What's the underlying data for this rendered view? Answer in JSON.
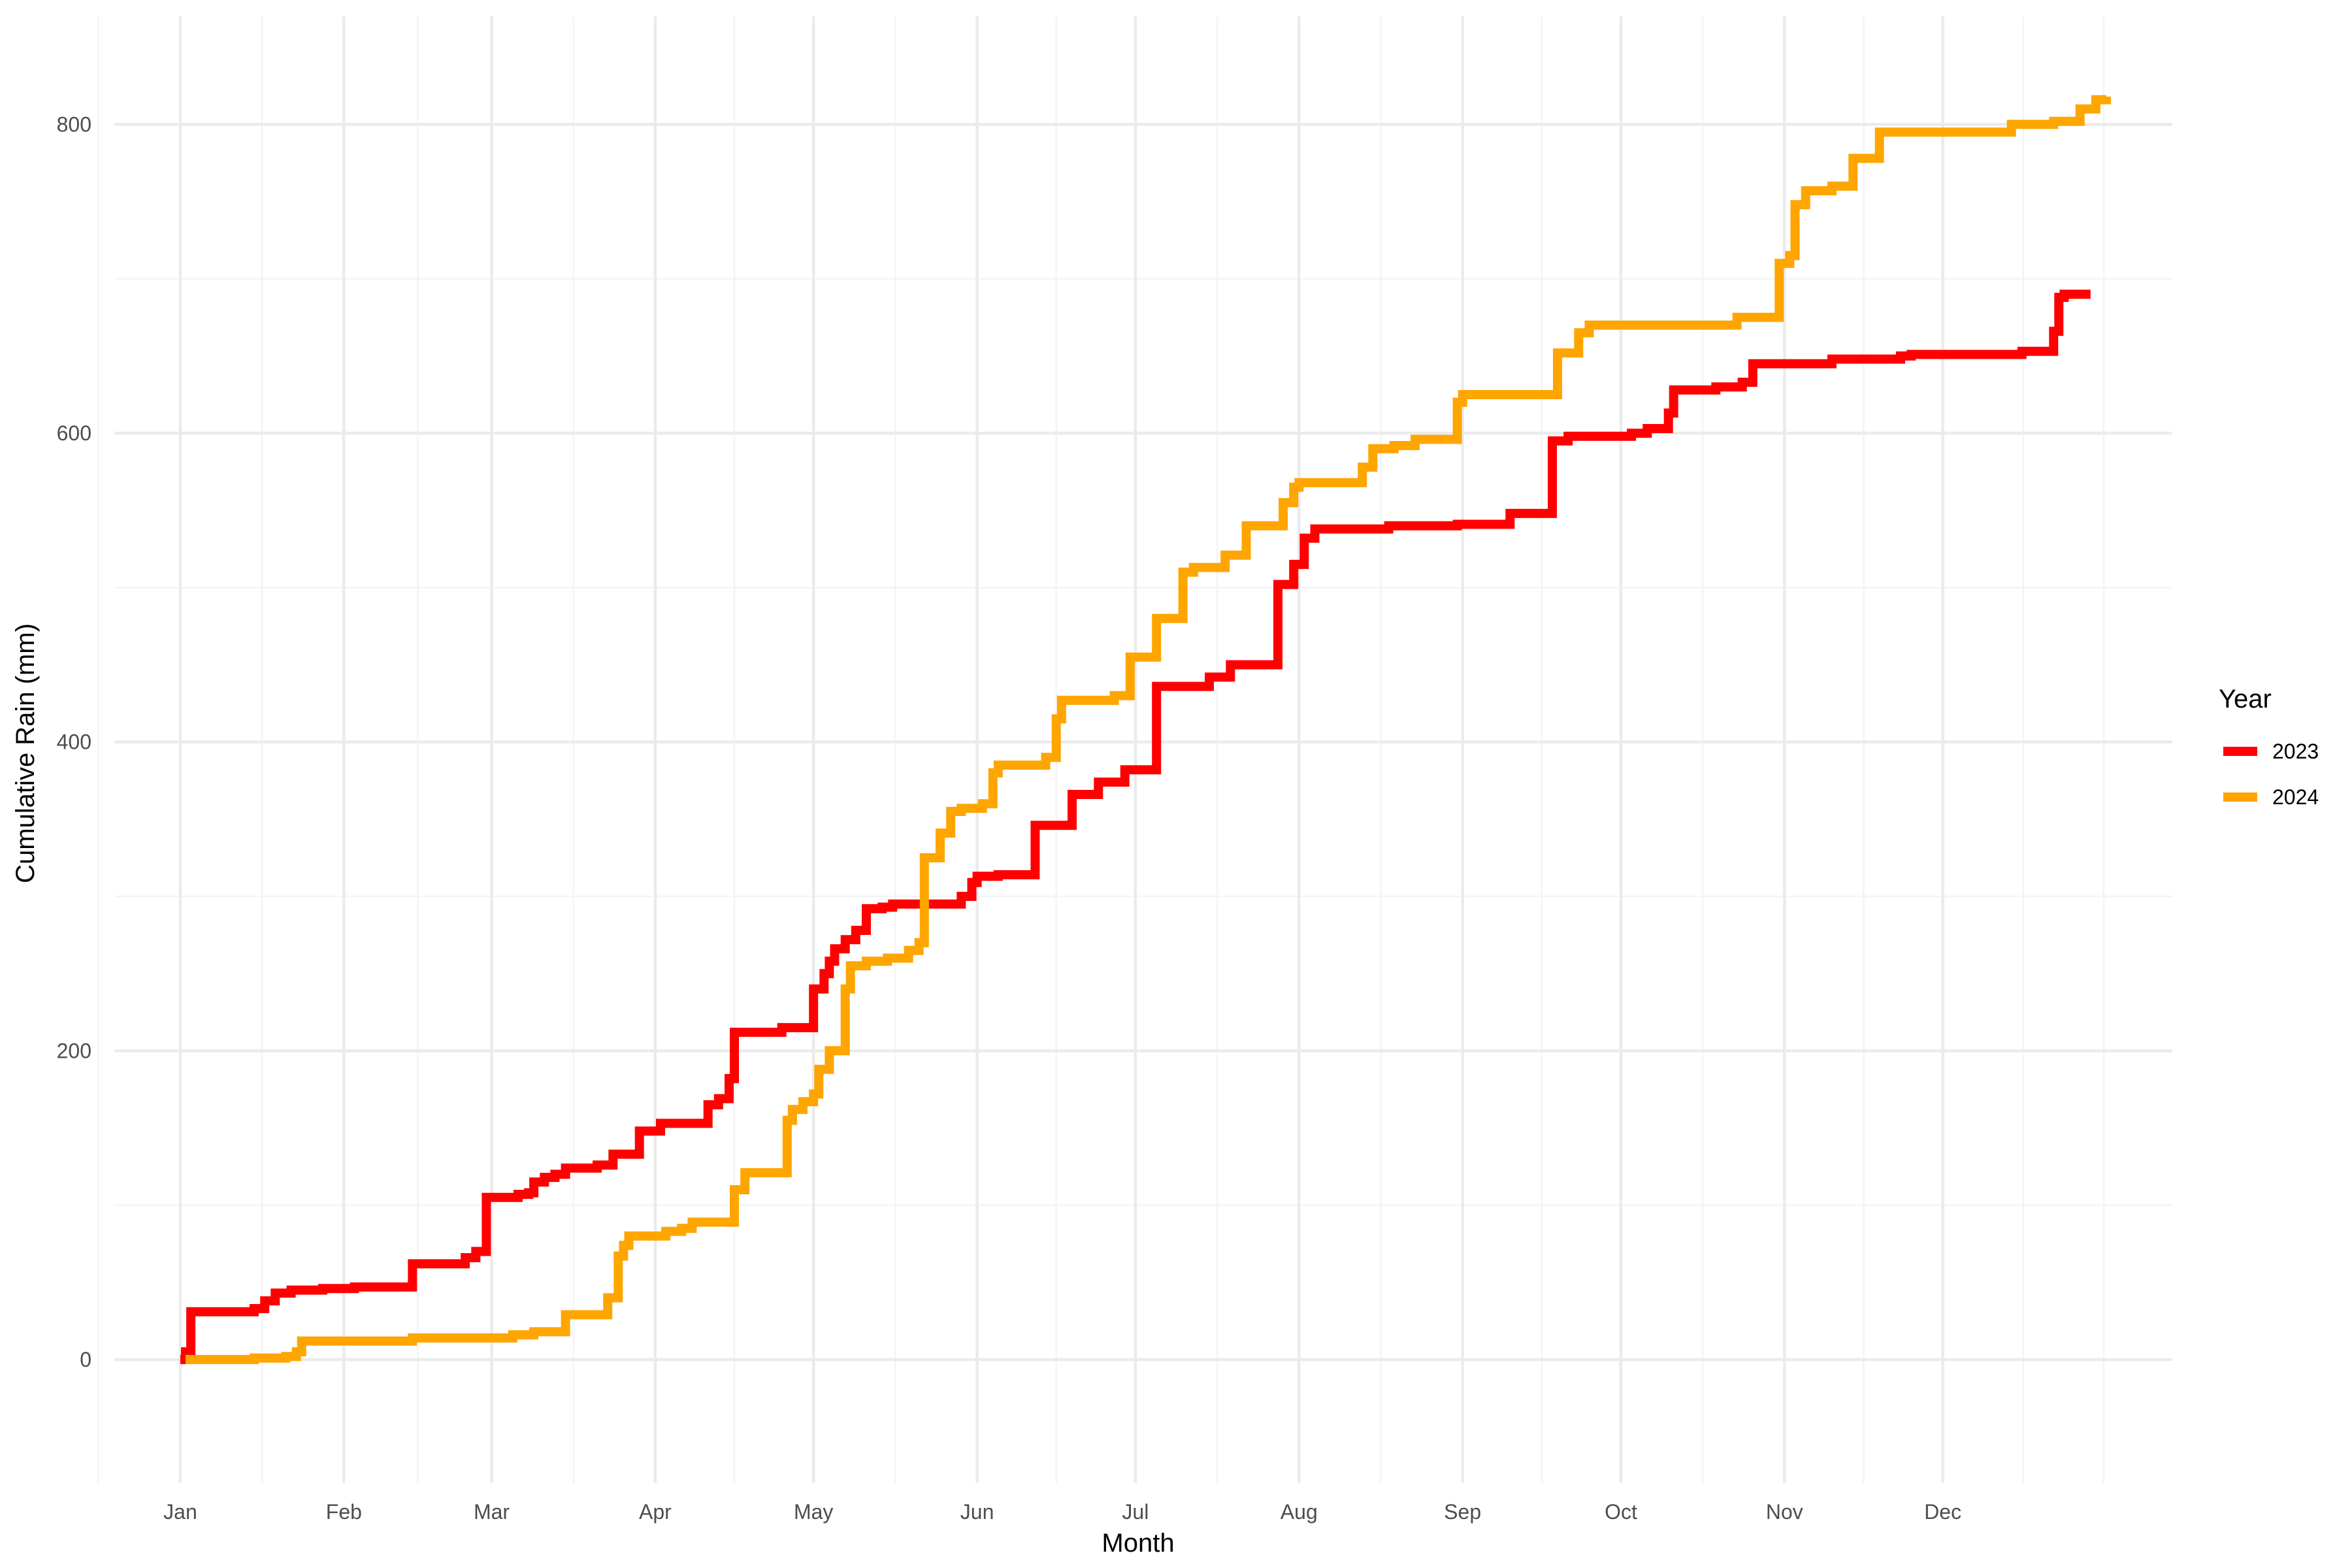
{
  "chart_data": {
    "type": "line",
    "title": "",
    "xlabel": "Month",
    "ylabel": "Cumulative Rain (mm)",
    "x_tick_labels": [
      "Jan",
      "Feb",
      "Mar",
      "Apr",
      "May",
      "Jun",
      "Jul",
      "Aug",
      "Sep",
      "Oct",
      "Nov",
      "Dec"
    ],
    "x_unit": "day of year",
    "x_major_breaks": [
      1,
      32,
      60,
      91,
      121,
      152,
      182,
      213,
      244,
      274,
      305,
      335
    ],
    "ylim": [
      -80,
      870
    ],
    "y_major_breaks": [
      0,
      200,
      400,
      600,
      800
    ],
    "y_minor_breaks": [
      100,
      300,
      500,
      700
    ],
    "grid": true,
    "legend": {
      "title": "Year",
      "position": "right"
    },
    "series": [
      {
        "name": "2023",
        "color": "#ff0000",
        "step": true,
        "points": [
          [
            1,
            0
          ],
          [
            2,
            5
          ],
          [
            3,
            31
          ],
          [
            15,
            33
          ],
          [
            17,
            38
          ],
          [
            19,
            43
          ],
          [
            22,
            45
          ],
          [
            28,
            46
          ],
          [
            34,
            47
          ],
          [
            45,
            62
          ],
          [
            55,
            66
          ],
          [
            57,
            70
          ],
          [
            59,
            105
          ],
          [
            65,
            107
          ],
          [
            67,
            108
          ],
          [
            68,
            115
          ],
          [
            70,
            118
          ],
          [
            72,
            120
          ],
          [
            74,
            124
          ],
          [
            80,
            126
          ],
          [
            83,
            133
          ],
          [
            88,
            148
          ],
          [
            92,
            153
          ],
          [
            101,
            165
          ],
          [
            103,
            169
          ],
          [
            105,
            182
          ],
          [
            106,
            212
          ],
          [
            115,
            215
          ],
          [
            121,
            240
          ],
          [
            123,
            250
          ],
          [
            124,
            258
          ],
          [
            125,
            266
          ],
          [
            127,
            272
          ],
          [
            129,
            278
          ],
          [
            131,
            292
          ],
          [
            134,
            293
          ],
          [
            136,
            295
          ],
          [
            149,
            300
          ],
          [
            151,
            309
          ],
          [
            152,
            313
          ],
          [
            156,
            314
          ],
          [
            163,
            346
          ],
          [
            170,
            366
          ],
          [
            175,
            374
          ],
          [
            180,
            382
          ],
          [
            186,
            436
          ],
          [
            196,
            442
          ],
          [
            200,
            450
          ],
          [
            209,
            502
          ],
          [
            212,
            515
          ],
          [
            214,
            532
          ],
          [
            216,
            538
          ],
          [
            230,
            540
          ],
          [
            243,
            541
          ],
          [
            253,
            548
          ],
          [
            261,
            595
          ],
          [
            264,
            598
          ],
          [
            276,
            600
          ],
          [
            279,
            603
          ],
          [
            283,
            613
          ],
          [
            284,
            628
          ],
          [
            292,
            630
          ],
          [
            297,
            633
          ],
          [
            299,
            645
          ],
          [
            314,
            648
          ],
          [
            327,
            650
          ],
          [
            329,
            651
          ],
          [
            350,
            653
          ],
          [
            356,
            666
          ],
          [
            357,
            688
          ],
          [
            358,
            690
          ],
          [
            363,
            690
          ]
        ]
      },
      {
        "name": "2024",
        "color": "#ffa500",
        "step": true,
        "points": [
          [
            2,
            0
          ],
          [
            7,
            0
          ],
          [
            15,
            1
          ],
          [
            21,
            2
          ],
          [
            23,
            5
          ],
          [
            24,
            12
          ],
          [
            45,
            14
          ],
          [
            60,
            14
          ],
          [
            64,
            16
          ],
          [
            68,
            18
          ],
          [
            74,
            29
          ],
          [
            82,
            40
          ],
          [
            84,
            67
          ],
          [
            85,
            74
          ],
          [
            86,
            80
          ],
          [
            93,
            83
          ],
          [
            96,
            85
          ],
          [
            98,
            89
          ],
          [
            106,
            110
          ],
          [
            108,
            121
          ],
          [
            116,
            155
          ],
          [
            117,
            162
          ],
          [
            119,
            167
          ],
          [
            121,
            172
          ],
          [
            122,
            188
          ],
          [
            124,
            200
          ],
          [
            127,
            240
          ],
          [
            128,
            255
          ],
          [
            131,
            258
          ],
          [
            135,
            260
          ],
          [
            139,
            265
          ],
          [
            141,
            270
          ],
          [
            142,
            325
          ],
          [
            145,
            341
          ],
          [
            147,
            355
          ],
          [
            149,
            357
          ],
          [
            153,
            360
          ],
          [
            155,
            380
          ],
          [
            156,
            385
          ],
          [
            165,
            390
          ],
          [
            167,
            415
          ],
          [
            168,
            427
          ],
          [
            178,
            430
          ],
          [
            181,
            455
          ],
          [
            186,
            480
          ],
          [
            191,
            510
          ],
          [
            193,
            513
          ],
          [
            199,
            521
          ],
          [
            203,
            540
          ],
          [
            210,
            555
          ],
          [
            212,
            565
          ],
          [
            213,
            568
          ],
          [
            225,
            578
          ],
          [
            227,
            590
          ],
          [
            231,
            592
          ],
          [
            235,
            596
          ],
          [
            243,
            620
          ],
          [
            244,
            625
          ],
          [
            262,
            652
          ],
          [
            266,
            665
          ],
          [
            268,
            670
          ],
          [
            296,
            675
          ],
          [
            304,
            710
          ],
          [
            306,
            715
          ],
          [
            307,
            748
          ],
          [
            309,
            757
          ],
          [
            314,
            760
          ],
          [
            318,
            778
          ],
          [
            323,
            795
          ],
          [
            348,
            800
          ],
          [
            356,
            802
          ],
          [
            361,
            810
          ],
          [
            364,
            816
          ],
          [
            366,
            818
          ]
        ]
      }
    ]
  }
}
